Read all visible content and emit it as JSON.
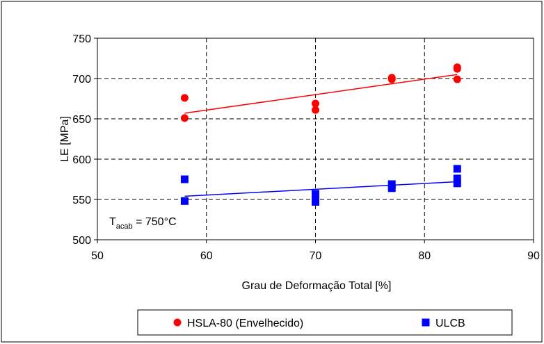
{
  "chart_data": {
    "type": "scatter",
    "xlabel": "Grau de Deformação Total [%]",
    "ylabel": "LE [MPa]",
    "xlim": [
      50,
      90
    ],
    "ylim": [
      500,
      750
    ],
    "xticks": [
      50,
      60,
      70,
      80,
      90
    ],
    "yticks": [
      500,
      550,
      600,
      650,
      700,
      750
    ],
    "grid": true,
    "legend_position": "bottom",
    "annotation": {
      "main": "T",
      "sub": "acab",
      "rest": " = 750°C"
    },
    "series": [
      {
        "name": "HSLA-80 (Envelhecido)",
        "color": "#ff0000",
        "marker": "circle",
        "points": [
          [
            58,
            676
          ],
          [
            58,
            651
          ],
          [
            70,
            669
          ],
          [
            70,
            661
          ],
          [
            77,
            701
          ],
          [
            77,
            699
          ],
          [
            83,
            714
          ],
          [
            83,
            712
          ],
          [
            83,
            699
          ]
        ],
        "trendline": [
          [
            58,
            657
          ],
          [
            83,
            705
          ]
        ]
      },
      {
        "name": "ULCB",
        "color": "#0000ff",
        "marker": "square",
        "points": [
          [
            58,
            575
          ],
          [
            58,
            548
          ],
          [
            70,
            557
          ],
          [
            70,
            552
          ],
          [
            70,
            547
          ],
          [
            77,
            569
          ],
          [
            77,
            564
          ],
          [
            83,
            588
          ],
          [
            83,
            576
          ],
          [
            83,
            570
          ]
        ],
        "trendline": [
          [
            58,
            554
          ],
          [
            83,
            572
          ]
        ]
      }
    ]
  }
}
